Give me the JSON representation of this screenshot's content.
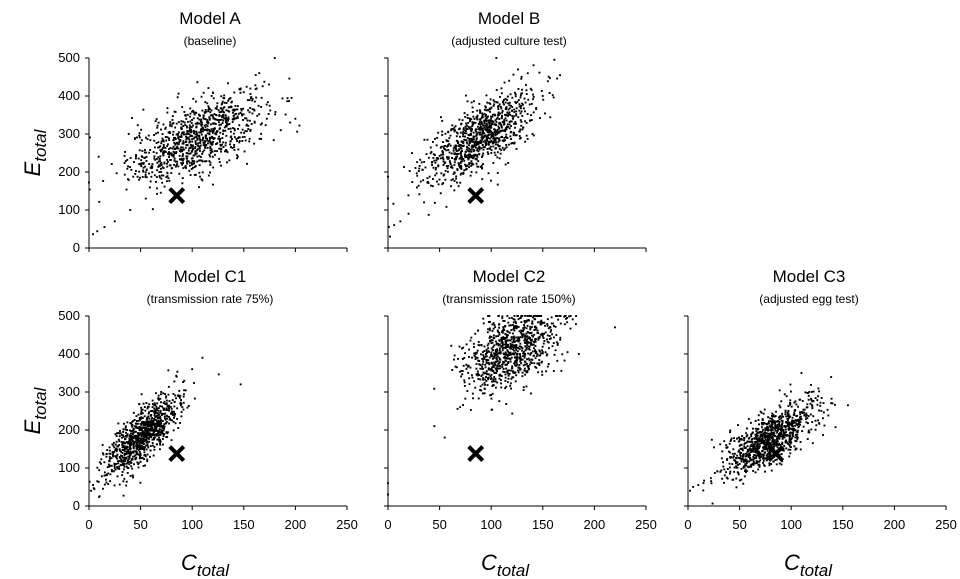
{
  "figure": {
    "ylabel_main": "E",
    "ylabel_sub": "total",
    "xlabel_main": "C",
    "xlabel_sub": "total"
  },
  "chart_data": [
    {
      "type": "scatter",
      "title": "Model A",
      "subtitle": "(baseline)",
      "xlim": [
        0,
        250
      ],
      "ylim": [
        0,
        500
      ],
      "xticks": [],
      "yticks": [
        0,
        100,
        200,
        300,
        400,
        500
      ],
      "observed": {
        "x": 85,
        "y": 138
      },
      "cloud": {
        "n": 950,
        "mx": 105,
        "sx": 33,
        "my": 290,
        "sy": 60,
        "rho": 0.64
      },
      "sample": [
        [
          4,
          36
        ],
        [
          8,
          44
        ],
        [
          15,
          55
        ],
        [
          25,
          70
        ],
        [
          40,
          100
        ],
        [
          55,
          130
        ],
        [
          70,
          200
        ],
        [
          100,
          280
        ],
        [
          130,
          350
        ],
        [
          150,
          410
        ],
        [
          165,
          460
        ],
        [
          180,
          500
        ],
        [
          200,
          340
        ],
        [
          195,
          330
        ]
      ]
    },
    {
      "type": "scatter",
      "title": "Model B",
      "subtitle": "(adjusted culture test)",
      "xlim": [
        0,
        250
      ],
      "ylim": [
        0,
        500
      ],
      "xticks": [],
      "yticks": [],
      "observed": {
        "x": 85,
        "y": 138
      },
      "cloud": {
        "n": 950,
        "mx": 88,
        "sx": 27,
        "my": 290,
        "sy": 60,
        "rho": 0.72
      },
      "sample": [
        [
          2,
          30
        ],
        [
          6,
          60
        ],
        [
          12,
          70
        ],
        [
          20,
          90
        ],
        [
          35,
          120
        ],
        [
          50,
          180
        ],
        [
          80,
          300
        ],
        [
          110,
          420
        ],
        [
          130,
          380
        ],
        [
          150,
          400
        ],
        [
          105,
          500
        ],
        [
          140,
          300
        ]
      ]
    },
    {
      "type": "scatter",
      "title": "Model C1",
      "subtitle": "(transmission rate 75%)",
      "xlim": [
        0,
        250
      ],
      "ylim": [
        0,
        500
      ],
      "xticks": [
        0,
        50,
        100,
        150,
        200,
        250
      ],
      "yticks": [
        0,
        100,
        200,
        300,
        400,
        500
      ],
      "observed": {
        "x": 85,
        "y": 138
      },
      "cloud": {
        "n": 950,
        "mx": 52,
        "sx": 18,
        "my": 185,
        "sy": 55,
        "rho": 0.78
      },
      "sample": [
        [
          2,
          40
        ],
        [
          4,
          55
        ],
        [
          8,
          65
        ],
        [
          15,
          80
        ],
        [
          25,
          100
        ],
        [
          40,
          150
        ],
        [
          70,
          300
        ],
        [
          85,
          340
        ],
        [
          100,
          360
        ],
        [
          110,
          390
        ],
        [
          147,
          320
        ]
      ]
    },
    {
      "type": "scatter",
      "title": "Model C2",
      "subtitle": "(transmission rate 150%)",
      "xlim": [
        0,
        250
      ],
      "ylim": [
        0,
        500
      ],
      "xticks": [
        0,
        50,
        100,
        150,
        200,
        250
      ],
      "yticks": [],
      "observed": {
        "x": 85,
        "y": 138
      },
      "cloud": {
        "n": 900,
        "mx": 118,
        "sx": 23,
        "my": 405,
        "sy": 55,
        "rho": 0.45
      },
      "sample": [
        [
          0,
          60
        ],
        [
          0,
          30
        ],
        [
          45,
          210
        ],
        [
          55,
          180
        ],
        [
          70,
          260
        ],
        [
          220,
          470
        ],
        [
          185,
          400
        ],
        [
          160,
          480
        ]
      ]
    },
    {
      "type": "scatter",
      "title": "Model C3",
      "subtitle": "(adjusted egg test)",
      "xlim": [
        0,
        250
      ],
      "ylim": [
        0,
        500
      ],
      "xticks": [
        0,
        50,
        100,
        150,
        200,
        250
      ],
      "yticks": [],
      "observed": {
        "x": 85,
        "y": 138
      },
      "cloud": {
        "n": 950,
        "mx": 78,
        "sx": 22,
        "my": 175,
        "sy": 50,
        "rho": 0.72
      },
      "sample": [
        [
          2,
          40
        ],
        [
          5,
          50
        ],
        [
          10,
          55
        ],
        [
          15,
          60
        ],
        [
          110,
          350
        ],
        [
          120,
          300
        ],
        [
          155,
          265
        ],
        [
          140,
          270
        ]
      ]
    }
  ]
}
